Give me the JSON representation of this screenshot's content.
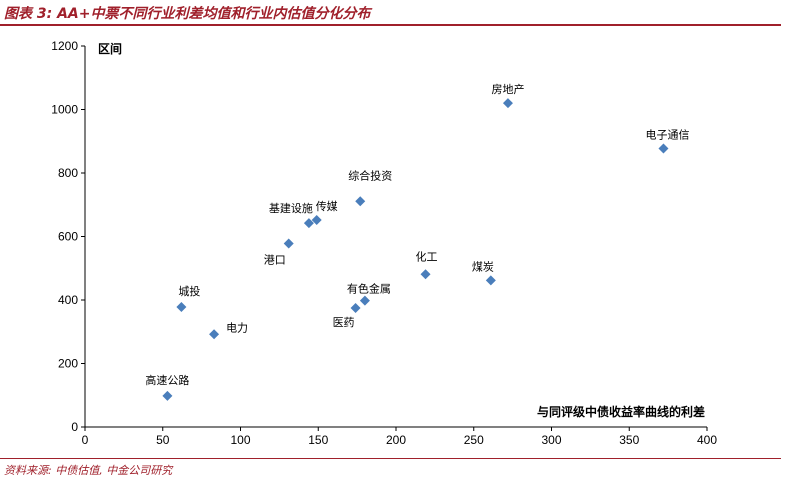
{
  "header": {
    "title": "图表 3: AA+中票不同行业利差均值和行业内估值分化分布"
  },
  "footer": {
    "source": "资料来源: 中债估值, 中金公司研究"
  },
  "chart_data": {
    "type": "scatter",
    "xlabel": "与同评级中债收益率曲线的利差",
    "ylabel": "区间",
    "xlim": [
      0,
      400
    ],
    "ylim": [
      0,
      1200
    ],
    "xticks": [
      0,
      50,
      100,
      150,
      200,
      250,
      300,
      350,
      400
    ],
    "yticks": [
      0,
      200,
      400,
      600,
      800,
      1000,
      1200
    ],
    "marker": "diamond",
    "color": "#4a7ebb",
    "grid": false,
    "points": [
      {
        "label": "房地产",
        "x": 272,
        "y": 1020
      },
      {
        "label": "电子通信",
        "x": 372,
        "y": 877
      },
      {
        "label": "综合投资",
        "x": 177,
        "y": 711
      },
      {
        "label": "传媒",
        "x": 149,
        "y": 652
      },
      {
        "label": "基建设施",
        "x": 144,
        "y": 642
      },
      {
        "label": "港口",
        "x": 131,
        "y": 578
      },
      {
        "label": "化工",
        "x": 219,
        "y": 481
      },
      {
        "label": "煤炭",
        "x": 261,
        "y": 462
      },
      {
        "label": "有色金属",
        "x": 180,
        "y": 398
      },
      {
        "label": "医药",
        "x": 174,
        "y": 375
      },
      {
        "label": "城投",
        "x": 62,
        "y": 378
      },
      {
        "label": "电力",
        "x": 83,
        "y": 292
      },
      {
        "label": "高速公路",
        "x": 53,
        "y": 98
      }
    ]
  }
}
